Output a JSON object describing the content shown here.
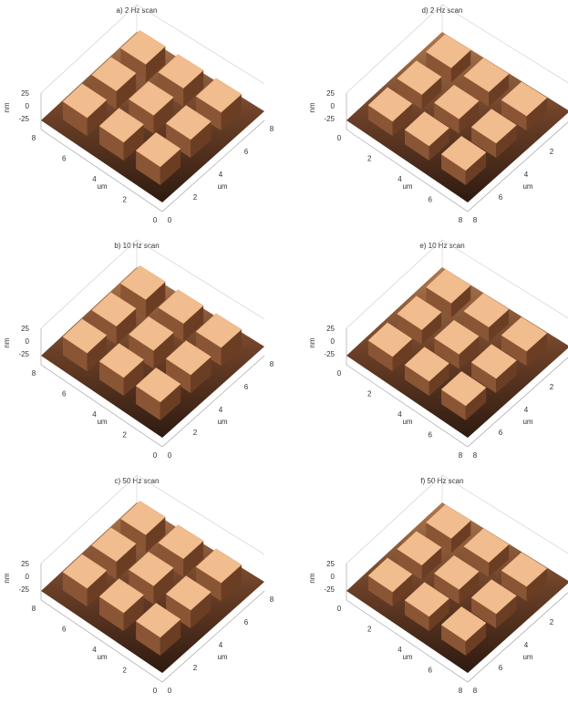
{
  "panels": [
    {
      "title": "a) 2 Hz scan",
      "z_label": "nm",
      "z_ticks": [
        25,
        0,
        -25
      ],
      "x_label": "um",
      "x_ticks": [
        8,
        6,
        4,
        2,
        0
      ],
      "y_label": "um",
      "y_ticks": [
        0,
        2,
        4,
        6,
        8
      ]
    },
    {
      "title": "b) 10 Hz scan",
      "z_label": "nm",
      "z_ticks": [
        25,
        0,
        -25
      ],
      "x_label": "um",
      "x_ticks": [
        8,
        6,
        4,
        2,
        0
      ],
      "y_label": "um",
      "y_ticks": [
        0,
        2,
        4,
        6,
        8
      ]
    },
    {
      "title": "c) 50 Hz scan",
      "z_label": "nm",
      "z_ticks": [
        25,
        0,
        -25
      ],
      "x_label": "um",
      "x_ticks": [
        8,
        6,
        4,
        2,
        0
      ],
      "y_label": "um",
      "y_ticks": [
        0,
        2,
        4,
        6,
        8
      ]
    },
    {
      "title": "d) 2 Hz scan",
      "z_label": "nm",
      "z_ticks": [
        25,
        0,
        -25
      ],
      "x_label": "um",
      "x_ticks": [
        0,
        2,
        4,
        6,
        8
      ],
      "y_label": "um",
      "y_ticks": [
        8,
        6,
        4,
        2,
        0
      ]
    },
    {
      "title": "e) 10 Hz scan",
      "z_label": "nm",
      "z_ticks": [
        25,
        0,
        -25
      ],
      "x_label": "um",
      "x_ticks": [
        0,
        2,
        4,
        6,
        8
      ],
      "y_label": "um",
      "y_ticks": [
        8,
        6,
        4,
        2,
        0
      ]
    },
    {
      "title": "f) 50 Hz scan",
      "z_label": "nm",
      "z_ticks": [
        25,
        0,
        -25
      ],
      "x_label": "um",
      "x_ticks": [
        0,
        2,
        4,
        6,
        8
      ],
      "y_label": "um",
      "y_ticks": [
        8,
        6,
        4,
        2,
        0
      ]
    }
  ]
}
